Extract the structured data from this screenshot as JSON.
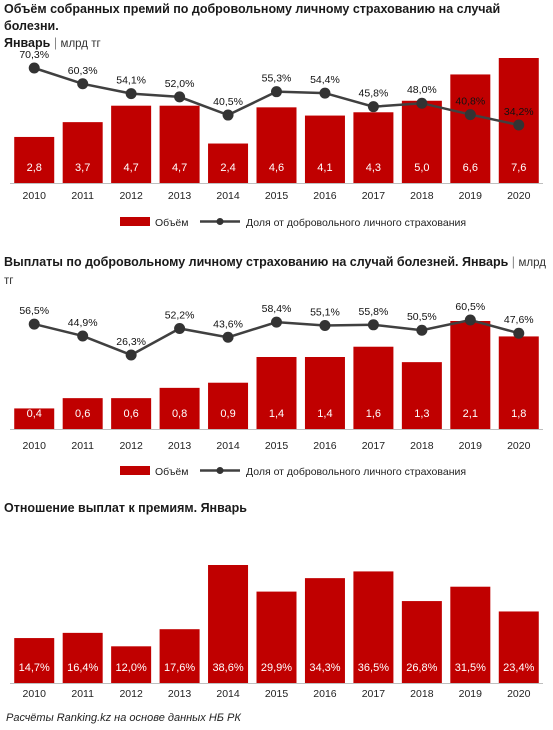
{
  "chart_data": [
    {
      "type": "bar",
      "title": "Объём собранных премий по добровольному личному страхованию на случай болезни. Январь",
      "title_line1": "Объём собранных премий по добровольному личному страхованию на случай болезни.",
      "title_line2": "Январь",
      "unit": "млрд тг",
      "categories": [
        "2010",
        "2011",
        "2012",
        "2013",
        "2014",
        "2015",
        "2016",
        "2017",
        "2018",
        "2019",
        "2020"
      ],
      "series": [
        {
          "name": "Объём",
          "kind": "bar",
          "color": "#c00000",
          "values": [
            2.8,
            3.7,
            4.7,
            4.7,
            2.4,
            4.6,
            4.1,
            4.3,
            5.0,
            6.6,
            7.6
          ],
          "labels": [
            "2,8",
            "3,7",
            "4,7",
            "4,7",
            "2,4",
            "4,6",
            "4,1",
            "4,3",
            "5,0",
            "6,6",
            "7,6"
          ]
        },
        {
          "name": "Доля от добровольного личного страхования",
          "kind": "line",
          "color": "#404040",
          "values": [
            70.3,
            60.3,
            54.1,
            52.0,
            40.5,
            55.3,
            54.4,
            45.8,
            48.0,
            40.8,
            34.2
          ],
          "labels": [
            "70,3%",
            "60,3%",
            "54,1%",
            "52,0%",
            "40,5%",
            "55,3%",
            "54,4%",
            "45,8%",
            "48,0%",
            "40,8%",
            "34,2%"
          ]
        }
      ],
      "legend": "bottom"
    },
    {
      "type": "bar",
      "title": "Выплаты по добровольному личному страхованию на случай болезней. Январь",
      "title_line1": "Выплаты по добровольному личному страхованию на случай болезней. Январь",
      "title_line2": "",
      "unit": "млрд тг",
      "categories": [
        "2010",
        "2011",
        "2012",
        "2013",
        "2014",
        "2015",
        "2016",
        "2017",
        "2018",
        "2019",
        "2020"
      ],
      "series": [
        {
          "name": "Объём",
          "kind": "bar",
          "color": "#c00000",
          "values": [
            0.4,
            0.6,
            0.6,
            0.8,
            0.9,
            1.4,
            1.4,
            1.6,
            1.3,
            2.1,
            1.8
          ],
          "labels": [
            "0,4",
            "0,6",
            "0,6",
            "0,8",
            "0,9",
            "1,4",
            "1,4",
            "1,6",
            "1,3",
            "2,1",
            "1,8"
          ]
        },
        {
          "name": "Доля от добровольного личного страхования",
          "kind": "line",
          "color": "#404040",
          "values": [
            56.5,
            44.9,
            26.3,
            52.2,
            43.6,
            58.4,
            55.1,
            55.8,
            50.5,
            60.5,
            47.6
          ],
          "labels": [
            "56,5%",
            "44,9%",
            "26,3%",
            "52,2%",
            "43,6%",
            "58,4%",
            "55,1%",
            "55,8%",
            "50,5%",
            "60,5%",
            "47,6%"
          ]
        }
      ],
      "legend": "bottom"
    },
    {
      "type": "bar",
      "title": "Отношение выплат к премиям. Январь",
      "title_line1": "Отношение выплат  к премиям. Январь",
      "title_line2": "",
      "unit": "",
      "categories": [
        "2010",
        "2011",
        "2012",
        "2013",
        "2014",
        "2015",
        "2016",
        "2017",
        "2018",
        "2019",
        "2020"
      ],
      "series": [
        {
          "name": "",
          "kind": "bar",
          "color": "#c00000",
          "values": [
            14.7,
            16.4,
            12.0,
            17.6,
            38.6,
            29.9,
            34.3,
            36.5,
            26.8,
            31.5,
            23.4
          ],
          "labels": [
            "14,7%",
            "16,4%",
            "12,0%",
            "17,6%",
            "38,6%",
            "29,9%",
            "34,3%",
            "36,5%",
            "26,8%",
            "31,5%",
            "23,4%"
          ]
        }
      ],
      "legend": "none"
    }
  ],
  "footer": "Расчёты Ranking.kz на основе данных НБ РК"
}
